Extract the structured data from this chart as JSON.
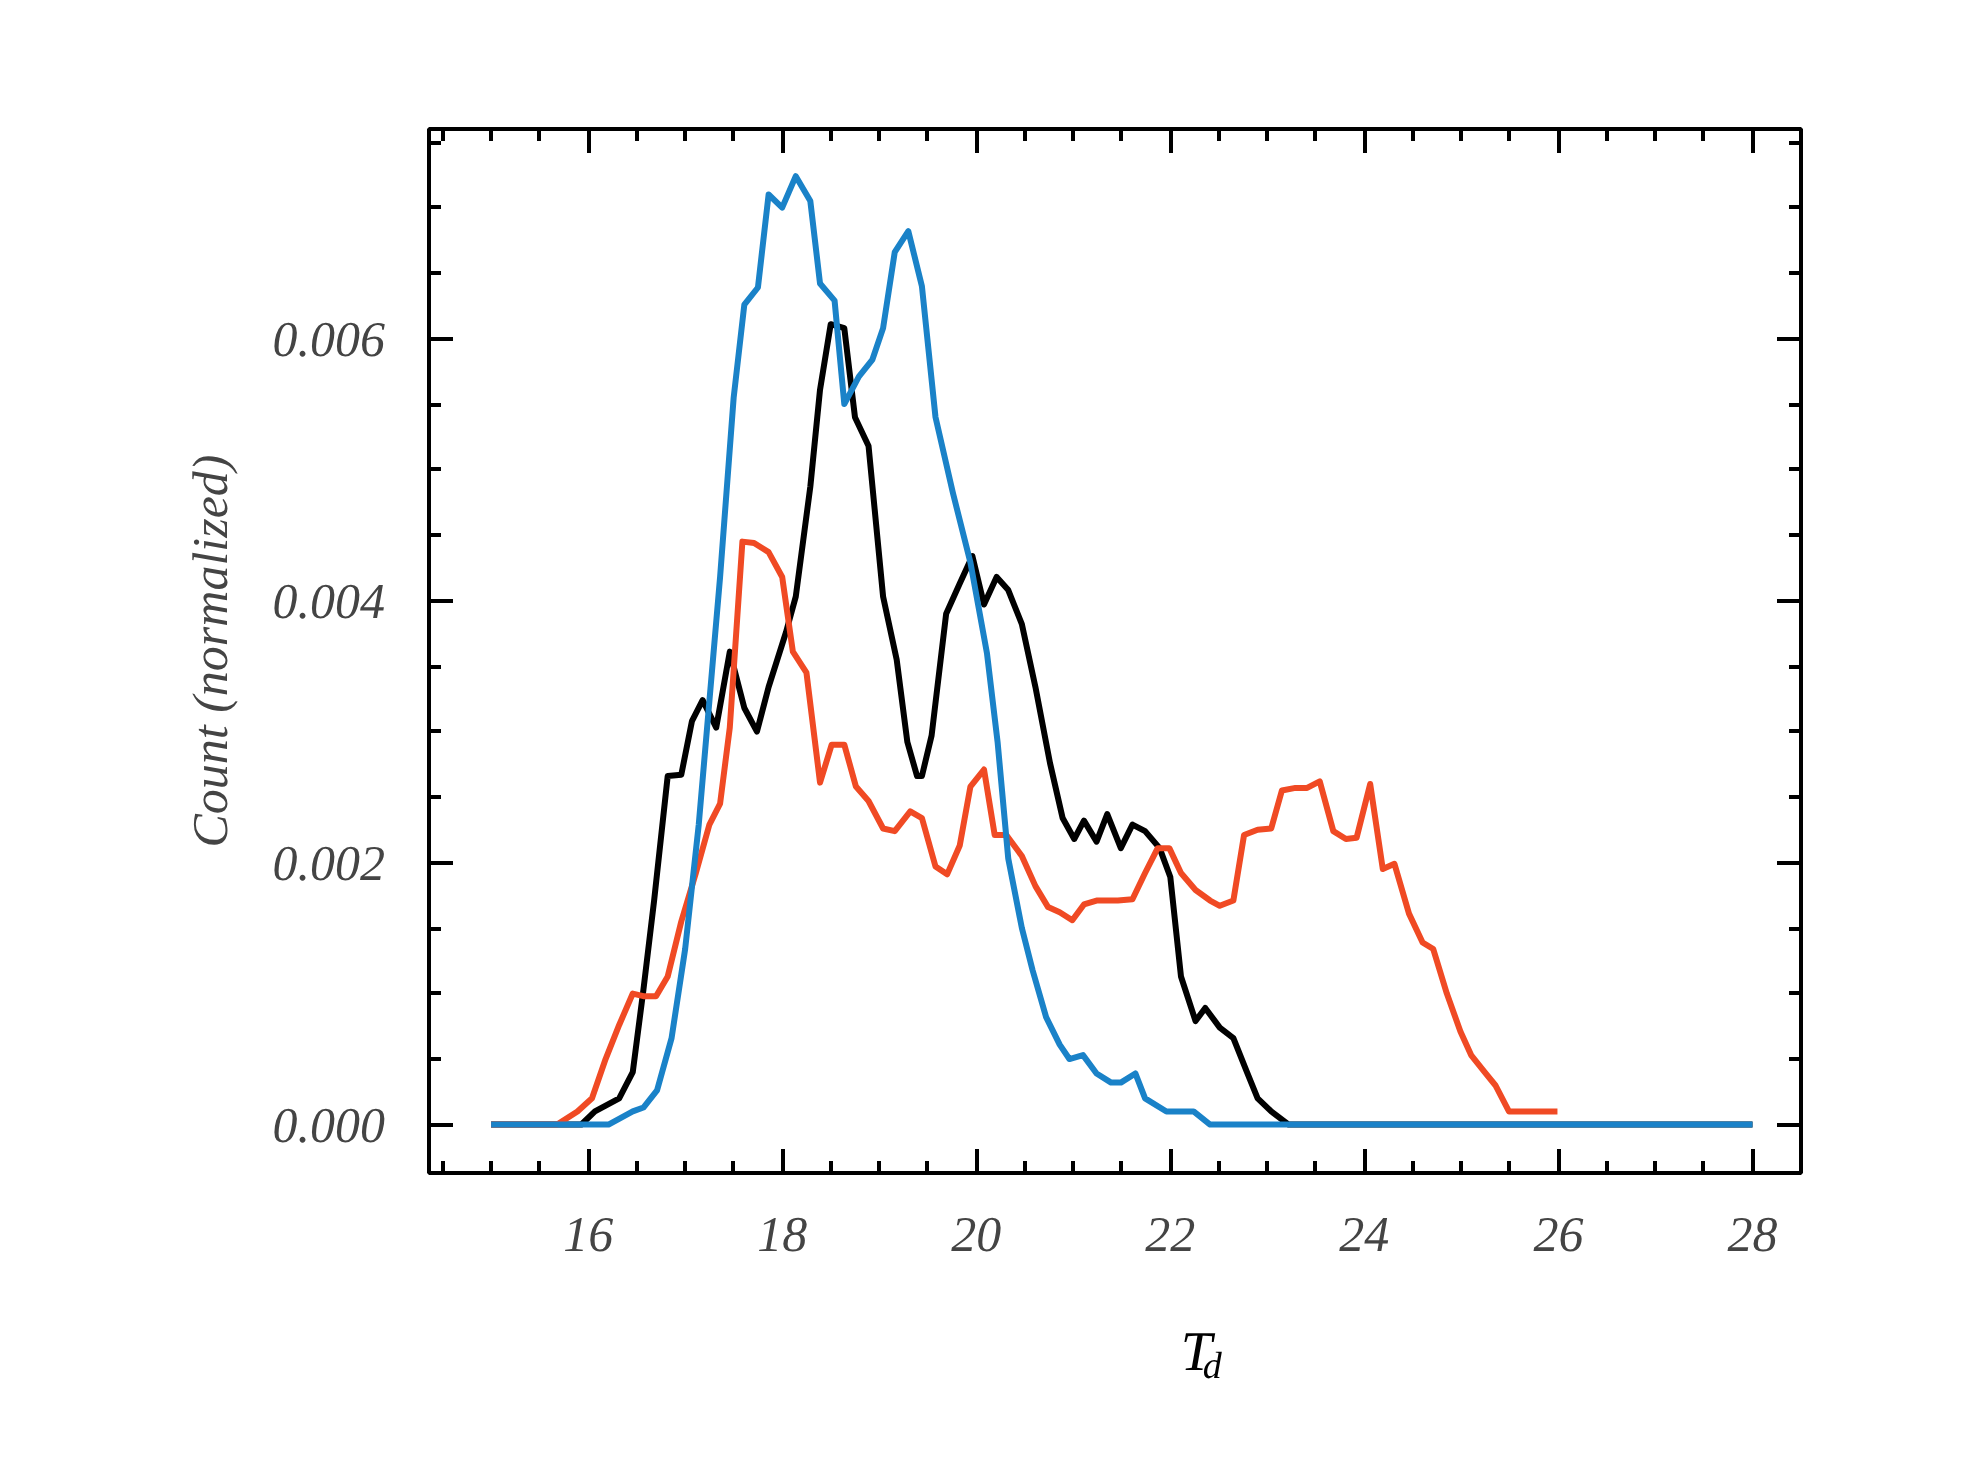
{
  "chart_data": {
    "type": "line",
    "xlabel": "T$_{d}$",
    "ylabel": "Count (normalized)",
    "xlim": [
      14.36,
      28.5
    ],
    "ylim": [
      -0.00037,
      0.0076
    ],
    "xticks": [
      16,
      18,
      20,
      22,
      24,
      26,
      28
    ],
    "yticks": [
      {
        "value": 0,
        "label": "0.000"
      },
      {
        "value": 0.002,
        "label": "0.002"
      },
      {
        "value": 0.004,
        "label": "0.004"
      },
      {
        "value": 0.006,
        "label": "0.006"
      }
    ],
    "grid": false,
    "marker": "none",
    "line_style": "solid",
    "series": [
      {
        "color": "#000000",
        "x": [
          15,
          15.93,
          16.07,
          16.32,
          16.46,
          16.57,
          16.68,
          16.82,
          16.96,
          17.07,
          17.18,
          17.32,
          17.46,
          17.61,
          17.74,
          17.86,
          18.04,
          18.14,
          18.29,
          18.39,
          18.5,
          18.64,
          18.75,
          18.89,
          19.04,
          19.18,
          19.29,
          19.39,
          19.44,
          19.54,
          19.69,
          19.83,
          19.96,
          20.08,
          20.21,
          20.33,
          20.47,
          20.61,
          20.76,
          20.89,
          21.01,
          21.11,
          21.24,
          21.35,
          21.49,
          21.61,
          21.74,
          21.89,
          22.0,
          22.11,
          22.26,
          22.36,
          22.51,
          22.65,
          22.79,
          22.9,
          23.04,
          23.22,
          28
        ],
        "values": [
          0,
          0,
          0.0001,
          0.0002,
          0.0004,
          0.00103,
          0.00171,
          0.00266,
          0.00267,
          0.00308,
          0.00324,
          0.00303,
          0.00361,
          0.00318,
          0.003,
          0.00334,
          0.00376,
          0.00403,
          0.00487,
          0.00561,
          0.00611,
          0.00608,
          0.0054,
          0.00518,
          0.00403,
          0.00355,
          0.00292,
          0.00266,
          0.00266,
          0.00297,
          0.0039,
          0.00413,
          0.00434,
          0.00397,
          0.00418,
          0.00408,
          0.00382,
          0.00334,
          0.00276,
          0.00234,
          0.00218,
          0.00232,
          0.00216,
          0.00237,
          0.00211,
          0.00229,
          0.00224,
          0.00211,
          0.00189,
          0.00113,
          0.00079,
          0.00089,
          0.00074,
          0.00066,
          0.0004,
          0.0002,
          0.0001,
          0,
          0
        ]
      },
      {
        "color": "#f04a24",
        "x": [
          15,
          15.68,
          15.89,
          16.04,
          16.18,
          16.32,
          16.46,
          16.57,
          16.7,
          16.82,
          16.96,
          17.11,
          17.25,
          17.36,
          17.46,
          17.59,
          17.71,
          17.86,
          18.0,
          18.11,
          18.25,
          18.39,
          18.51,
          18.64,
          18.76,
          18.89,
          19.04,
          19.16,
          19.32,
          19.44,
          19.58,
          19.7,
          19.83,
          19.94,
          20.08,
          20.19,
          20.31,
          20.47,
          20.61,
          20.74,
          20.86,
          20.99,
          21.11,
          21.24,
          21.46,
          21.61,
          21.74,
          21.87,
          21.99,
          22.11,
          22.26,
          22.41,
          22.51,
          22.65,
          22.76,
          22.9,
          23.04,
          23.15,
          23.29,
          23.41,
          23.54,
          23.68,
          23.81,
          23.92,
          24.06,
          24.19,
          24.31,
          24.46,
          24.6,
          24.71,
          24.85,
          24.99,
          25.1,
          25.24,
          25.35,
          25.49,
          25.64,
          25.85,
          25.99
        ],
        "values": [
          0,
          0,
          0.0001,
          0.0002,
          0.0005,
          0.00076,
          0.001,
          0.00098,
          0.00098,
          0.00113,
          0.00155,
          0.00192,
          0.00229,
          0.00245,
          0.00303,
          0.00445,
          0.00444,
          0.00437,
          0.00418,
          0.00361,
          0.00345,
          0.00261,
          0.0029,
          0.0029,
          0.00258,
          0.00247,
          0.00226,
          0.00224,
          0.00239,
          0.00234,
          0.00197,
          0.00191,
          0.00213,
          0.00258,
          0.00271,
          0.00221,
          0.00221,
          0.00205,
          0.00182,
          0.00166,
          0.00162,
          0.00156,
          0.00168,
          0.00171,
          0.00171,
          0.00172,
          0.00192,
          0.00211,
          0.00211,
          0.00192,
          0.00179,
          0.00171,
          0.00167,
          0.00171,
          0.00221,
          0.00225,
          0.00226,
          0.00255,
          0.00257,
          0.00257,
          0.00262,
          0.00224,
          0.00218,
          0.00219,
          0.0026,
          0.00195,
          0.00199,
          0.00161,
          0.00139,
          0.00134,
          0.001,
          0.00071,
          0.00053,
          0.0004,
          0.0003,
          0.0001,
          0.0001,
          0.0001,
          0.0001
        ]
      },
      {
        "color": "#1a82c8",
        "x": [
          15,
          16.21,
          16.46,
          16.57,
          16.71,
          16.86,
          17.0,
          17.14,
          17.36,
          17.5,
          17.61,
          17.75,
          17.86,
          18.0,
          18.14,
          18.29,
          18.39,
          18.54,
          18.64,
          18.79,
          18.93,
          19.04,
          19.16,
          19.3,
          19.44,
          19.58,
          19.76,
          19.94,
          20.11,
          20.22,
          20.33,
          20.47,
          20.58,
          20.72,
          20.86,
          20.96,
          21.1,
          21.24,
          21.39,
          21.49,
          21.64,
          21.74,
          21.96,
          22.24,
          22.41,
          22.74,
          23.16,
          28
        ],
        "values": [
          0,
          0,
          0.0001,
          0.00013,
          0.00026,
          0.00066,
          0.00134,
          0.00229,
          0.00418,
          0.00555,
          0.00626,
          0.00639,
          0.0071,
          0.007,
          0.00724,
          0.00705,
          0.00642,
          0.00629,
          0.0055,
          0.00571,
          0.00584,
          0.00608,
          0.00666,
          0.00682,
          0.0064,
          0.0054,
          0.00482,
          0.00429,
          0.0036,
          0.00292,
          0.00203,
          0.0015,
          0.00118,
          0.00082,
          0.00061,
          0.0005,
          0.00053,
          0.00039,
          0.00032,
          0.00032,
          0.00039,
          0.0002,
          0.0001,
          0.0001,
          0,
          0,
          0,
          0
        ]
      }
    ]
  }
}
